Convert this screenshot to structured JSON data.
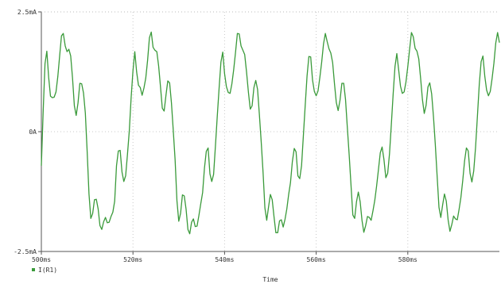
{
  "chart_data": {
    "type": "line",
    "title": "",
    "xlabel": "Time",
    "ylabel": "",
    "xlim": [
      500,
      600
    ],
    "ylim": [
      -2.5,
      2.5
    ],
    "x_unit": "ms",
    "y_unit": "mA",
    "grid": true,
    "grid_style": "dotted",
    "legend_position": "bottom-left",
    "x_tick_labels": [
      "500ms",
      "520ms",
      "540ms",
      "560ms",
      "580ms"
    ],
    "y_tick_labels": [
      "-2.5mA",
      "0A",
      "2.5mA"
    ],
    "x_ticks": [
      500,
      520,
      540,
      560,
      580
    ],
    "y_ticks": [
      -2.5,
      0,
      2.5
    ],
    "series": [
      {
        "name": "I(R1)",
        "color": "#3a9a3a",
        "marker": "square",
        "x": [
          500.0,
          500.4,
          500.8,
          501.2,
          501.6,
          502.0,
          502.4,
          502.8,
          503.2,
          503.6,
          504.0,
          504.4,
          504.8,
          505.2,
          505.6,
          506.0,
          506.4,
          506.8,
          507.2,
          507.6,
          508.0,
          508.4,
          508.8,
          509.2,
          509.6,
          510.0,
          510.4,
          510.8,
          511.2,
          511.6,
          512.0,
          512.4,
          512.8,
          513.2,
          513.6,
          514.0,
          514.4,
          514.8,
          515.2,
          515.6,
          516.0,
          516.4,
          516.8,
          517.2,
          517.6,
          518.0,
          518.4,
          518.8,
          519.2,
          519.6,
          520.0,
          520.4,
          520.8,
          521.2,
          521.6,
          522.0,
          522.4,
          522.8,
          523.2,
          523.6,
          524.0,
          524.4,
          524.8,
          525.2,
          525.6,
          526.0,
          526.4,
          526.8,
          527.2,
          527.6,
          528.0,
          528.4,
          528.8,
          529.2,
          529.6,
          530.0,
          530.4,
          530.8,
          531.2,
          531.6,
          532.0,
          532.4,
          532.8,
          533.2,
          533.6,
          534.0,
          534.4,
          534.8,
          535.2,
          535.6,
          536.0,
          536.4,
          536.8,
          537.2,
          537.6,
          538.0,
          538.4,
          538.8,
          539.2,
          539.6,
          540.0,
          540.4,
          540.8,
          541.2,
          541.6,
          542.0,
          542.4,
          542.8,
          543.2,
          543.6,
          544.0,
          544.4,
          544.8,
          545.2,
          545.6,
          546.0,
          546.4,
          546.8,
          547.2,
          547.6,
          548.0,
          548.4,
          548.8,
          549.2,
          549.6,
          550.0,
          550.4,
          550.8,
          551.2,
          551.6,
          552.0,
          552.4,
          552.8,
          553.2,
          553.6,
          554.0,
          554.4,
          554.8,
          555.2,
          555.6,
          556.0,
          556.4,
          556.8,
          557.2,
          557.6,
          558.0,
          558.4,
          558.8,
          559.2,
          559.6,
          560.0,
          560.4,
          560.8,
          561.2,
          561.6,
          562.0,
          562.4,
          562.8,
          563.2,
          563.6,
          564.0,
          564.4,
          564.8,
          565.2,
          565.6,
          566.0,
          566.4,
          566.8,
          567.2,
          567.6,
          568.0,
          568.4,
          568.8,
          569.2,
          569.6,
          570.0,
          570.4,
          570.8,
          571.2,
          571.6,
          572.0,
          572.4,
          572.8,
          573.2,
          573.6,
          574.0,
          574.4,
          574.8,
          575.2,
          575.6,
          576.0,
          576.4,
          576.8,
          577.2,
          577.6,
          578.0,
          578.4,
          578.8,
          579.2,
          579.6,
          580.0,
          580.4,
          580.8,
          581.2,
          581.6,
          582.0,
          582.4,
          582.8,
          583.2,
          583.6,
          584.0,
          584.4,
          584.8,
          585.2,
          585.6,
          586.0,
          586.4,
          586.8,
          587.2,
          587.6,
          588.0,
          588.4,
          588.8,
          589.2,
          589.6,
          590.0,
          590.4,
          590.8,
          591.2,
          591.6,
          592.0,
          592.4,
          592.8,
          593.2,
          593.6,
          594.0,
          594.4,
          594.8,
          595.2,
          595.6,
          596.0,
          596.4,
          596.8,
          597.2,
          597.6,
          598.0,
          598.4,
          598.8,
          599.2,
          599.6,
          600.0
        ],
        "values": [
          -0.71,
          0.43,
          1.42,
          1.68,
          1.13,
          0.74,
          0.71,
          0.72,
          0.83,
          1.15,
          1.58,
          2.0,
          2.05,
          1.79,
          1.67,
          1.72,
          1.58,
          1.12,
          0.54,
          0.34,
          0.6,
          1.01,
          1.0,
          0.81,
          0.39,
          -0.41,
          -1.3,
          -1.81,
          -1.71,
          -1.42,
          -1.41,
          -1.61,
          -1.96,
          -2.04,
          -1.88,
          -1.79,
          -1.9,
          -1.89,
          -1.77,
          -1.68,
          -1.45,
          -0.71,
          -0.4,
          -0.39,
          -0.84,
          -1.04,
          -0.92,
          -0.47,
          0.02,
          0.71,
          1.27,
          1.67,
          1.25,
          0.97,
          0.92,
          0.76,
          0.91,
          1.12,
          1.49,
          1.96,
          2.08,
          1.76,
          1.7,
          1.67,
          1.37,
          0.94,
          0.49,
          0.43,
          0.76,
          1.06,
          1.02,
          0.6,
          0.02,
          -0.59,
          -1.44,
          -1.87,
          -1.7,
          -1.32,
          -1.34,
          -1.62,
          -2.04,
          -2.13,
          -1.89,
          -1.82,
          -1.98,
          -1.97,
          -1.75,
          -1.51,
          -1.27,
          -0.76,
          -0.41,
          -0.34,
          -0.88,
          -1.04,
          -0.89,
          -0.3,
          0.32,
          0.9,
          1.45,
          1.66,
          1.21,
          0.94,
          0.82,
          0.8,
          1.0,
          1.3,
          1.66,
          2.05,
          2.04,
          1.79,
          1.7,
          1.61,
          1.25,
          0.82,
          0.47,
          0.54,
          0.92,
          1.07,
          0.88,
          0.35,
          -0.22,
          -0.85,
          -1.59,
          -1.85,
          -1.57,
          -1.31,
          -1.42,
          -1.78,
          -2.11,
          -2.11,
          -1.86,
          -1.84,
          -1.99,
          -1.83,
          -1.61,
          -1.31,
          -1.06,
          -0.63,
          -0.35,
          -0.42,
          -0.92,
          -0.98,
          -0.71,
          -0.08,
          0.55,
          1.16,
          1.57,
          1.56,
          1.08,
          0.84,
          0.75,
          0.85,
          1.13,
          1.45,
          1.83,
          2.05,
          1.88,
          1.73,
          1.64,
          1.44,
          1.0,
          0.61,
          0.44,
          0.66,
          1.01,
          1.01,
          0.67,
          0.08,
          -0.49,
          -1.12,
          -1.74,
          -1.81,
          -1.46,
          -1.26,
          -1.46,
          -1.85,
          -2.1,
          -1.96,
          -1.77,
          -1.79,
          -1.85,
          -1.65,
          -1.43,
          -1.13,
          -0.79,
          -0.44,
          -0.32,
          -0.58,
          -0.96,
          -0.87,
          -0.46,
          0.15,
          0.79,
          1.36,
          1.63,
          1.29,
          0.95,
          0.8,
          0.83,
          1.04,
          1.36,
          1.72,
          2.07,
          1.98,
          1.74,
          1.68,
          1.52,
          1.12,
          0.67,
          0.38,
          0.55,
          0.93,
          1.02,
          0.79,
          0.31,
          -0.27,
          -0.93,
          -1.58,
          -1.79,
          -1.53,
          -1.3,
          -1.45,
          -1.84,
          -2.08,
          -1.94,
          -1.76,
          -1.82,
          -1.84,
          -1.62,
          -1.37,
          -1.02,
          -0.61,
          -0.34,
          -0.4,
          -0.87,
          -1.05,
          -0.82,
          -0.33,
          0.34,
          0.99,
          1.46,
          1.58,
          1.16,
          0.87,
          0.75,
          0.84,
          1.11,
          1.43,
          1.85,
          2.07,
          1.86
        ]
      }
    ]
  }
}
